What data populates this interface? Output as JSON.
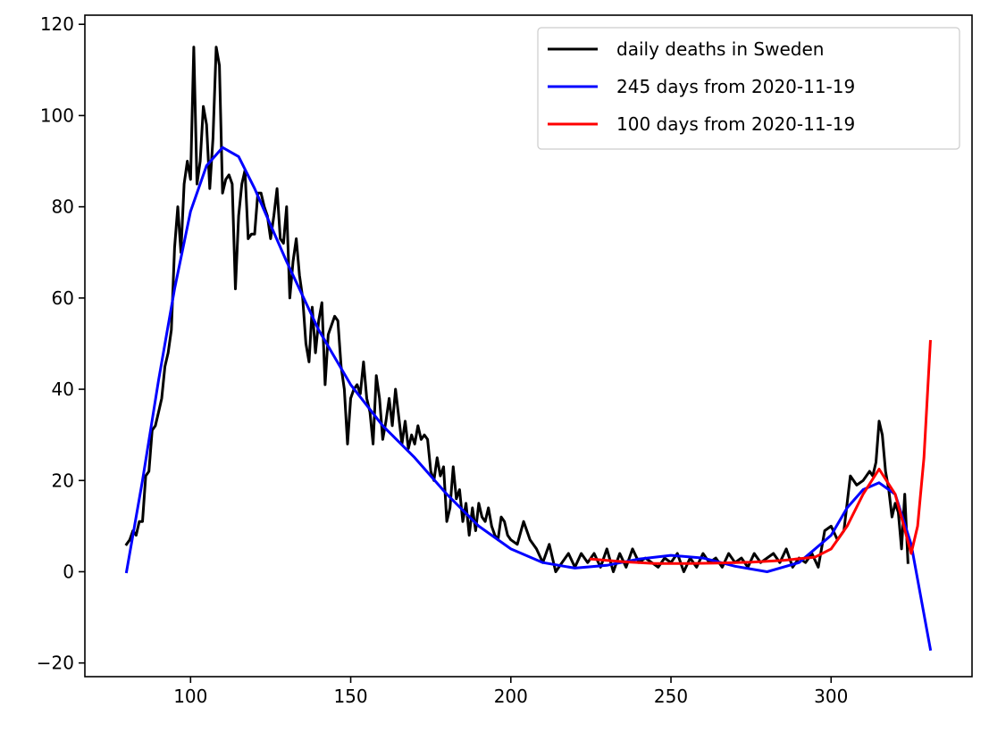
{
  "chart_data": {
    "type": "line",
    "title": "",
    "xlabel": "",
    "ylabel": "",
    "xlim": [
      67,
      344
    ],
    "ylim": [
      -23,
      122
    ],
    "xticks": [
      100,
      150,
      200,
      250,
      300
    ],
    "yticks": [
      -20,
      0,
      20,
      40,
      60,
      80,
      100,
      120
    ],
    "xtick_labels": [
      "100",
      "150",
      "200",
      "250",
      "300"
    ],
    "ytick_labels": [
      "−20",
      "0",
      "20",
      "40",
      "60",
      "80",
      "100",
      "120"
    ],
    "grid": false,
    "legend_position": "top-right",
    "series": [
      {
        "name": "daily deaths in Sweden",
        "color": "#000000",
        "x": [
          80,
          81,
          82,
          83,
          84,
          85,
          86,
          87,
          88,
          89,
          90,
          91,
          92,
          93,
          94,
          95,
          96,
          97,
          98,
          99,
          100,
          101,
          102,
          103,
          104,
          105,
          106,
          107,
          108,
          109,
          110,
          111,
          112,
          113,
          114,
          115,
          116,
          117,
          118,
          119,
          120,
          121,
          122,
          123,
          124,
          125,
          126,
          127,
          128,
          129,
          130,
          131,
          132,
          133,
          134,
          135,
          136,
          137,
          138,
          139,
          140,
          141,
          142,
          143,
          144,
          145,
          146,
          147,
          148,
          149,
          150,
          151,
          152,
          153,
          154,
          155,
          156,
          157,
          158,
          159,
          160,
          161,
          162,
          163,
          164,
          165,
          166,
          167,
          168,
          169,
          170,
          171,
          172,
          173,
          174,
          175,
          176,
          177,
          178,
          179,
          180,
          181,
          182,
          183,
          184,
          185,
          186,
          187,
          188,
          189,
          190,
          191,
          192,
          193,
          194,
          195,
          196,
          197,
          198,
          199,
          200,
          202,
          204,
          206,
          208,
          210,
          212,
          214,
          216,
          218,
          220,
          222,
          224,
          226,
          228,
          230,
          232,
          234,
          236,
          238,
          240,
          242,
          244,
          246,
          248,
          250,
          252,
          254,
          256,
          258,
          260,
          262,
          264,
          266,
          268,
          270,
          272,
          274,
          276,
          278,
          280,
          282,
          284,
          286,
          288,
          290,
          292,
          294,
          296,
          298,
          300,
          302,
          304,
          306,
          308,
          310,
          312,
          313,
          314,
          315,
          316,
          317,
          318,
          319,
          320,
          321,
          322,
          323,
          324
        ],
        "y": [
          6,
          7,
          9,
          8,
          11,
          11,
          21,
          22,
          31,
          32,
          35,
          38,
          45,
          48,
          53,
          71,
          80,
          70,
          85,
          90,
          86,
          115,
          85,
          90,
          102,
          98,
          84,
          95,
          115,
          111,
          83,
          86,
          87,
          85,
          62,
          78,
          85,
          88,
          73,
          74,
          74,
          83,
          83,
          80,
          78,
          73,
          78,
          84,
          73,
          72,
          80,
          60,
          68,
          73,
          65,
          60,
          50,
          46,
          58,
          48,
          55,
          59,
          41,
          52,
          54,
          56,
          55,
          45,
          40,
          28,
          38,
          40,
          41,
          39,
          46,
          38,
          35,
          28,
          43,
          38,
          29,
          33,
          38,
          32,
          40,
          34,
          28,
          33,
          27,
          30,
          28,
          32,
          29,
          30,
          29,
          22,
          20,
          25,
          21,
          23,
          11,
          14,
          23,
          16,
          18,
          11,
          15,
          8,
          14,
          9,
          15,
          12,
          11,
          14,
          10,
          8,
          7,
          12,
          11,
          8,
          7,
          6,
          11,
          7,
          5,
          2,
          6,
          0,
          2,
          4,
          1,
          4,
          2,
          4,
          1,
          5,
          0,
          4,
          1,
          5,
          2,
          3,
          2,
          1,
          3,
          2,
          4,
          0,
          3,
          1,
          4,
          2,
          3,
          1,
          4,
          2,
          3,
          1,
          4,
          2,
          3,
          4,
          2,
          5,
          1,
          3,
          2,
          4,
          1,
          9,
          10,
          7,
          9,
          21,
          19,
          20,
          22,
          21,
          24,
          33,
          30,
          22,
          18,
          12,
          15,
          13,
          5,
          17,
          2
        ]
      },
      {
        "name": "245 days from 2020-11-19",
        "color": "#0000ff",
        "x": [
          80,
          85,
          90,
          95,
          100,
          105,
          110,
          115,
          120,
          125,
          130,
          140,
          150,
          160,
          170,
          180,
          190,
          200,
          210,
          220,
          230,
          240,
          250,
          260,
          270,
          280,
          290,
          300,
          305,
          310,
          315,
          320,
          325,
          331
        ],
        "y": [
          0,
          20,
          42,
          62,
          79,
          89,
          93,
          91,
          84,
          76,
          68,
          53,
          41,
          32,
          25,
          17,
          10,
          5,
          2,
          0.8,
          1.4,
          2.8,
          3.6,
          3.0,
          1.2,
          0,
          2,
          8,
          14,
          18,
          19.5,
          17,
          6,
          -17
        ]
      },
      {
        "name": "100 days from 2020-11-19",
        "color": "#ff0000",
        "x": [
          225,
          235,
          245,
          255,
          265,
          275,
          285,
          295,
          300,
          305,
          310,
          315,
          320,
          325,
          327,
          329,
          331
        ],
        "y": [
          2.8,
          2.2,
          1.8,
          1.8,
          1.9,
          2.1,
          2.5,
          3.2,
          5,
          10,
          17,
          22.5,
          17,
          4,
          10,
          25,
          50.5
        ]
      }
    ]
  }
}
